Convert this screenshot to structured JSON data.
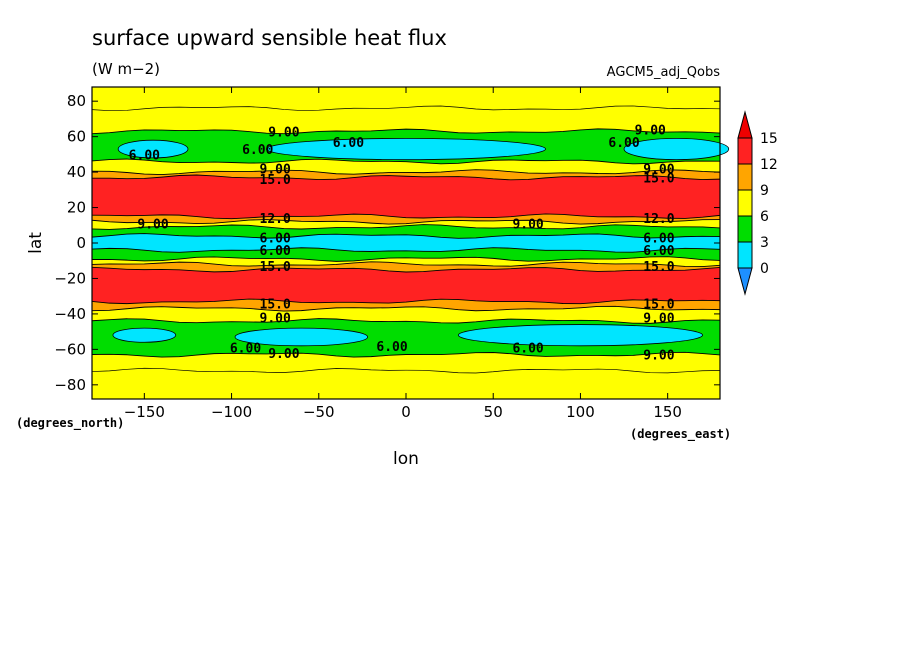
{
  "chart_data": {
    "type": "heatmap",
    "title": "surface upward sensible heat flux",
    "units": "(W m−2)",
    "dataset": "AGCM5_adj_Qobs",
    "xlabel": "lon",
    "ylabel": "lat",
    "x_units": "(degrees_east)",
    "y_units": "(degrees_north)",
    "xlim": [
      -180,
      180
    ],
    "ylim": [
      -88,
      88
    ],
    "x_ticks": [
      -150,
      -100,
      -50,
      0,
      50,
      100,
      150
    ],
    "y_ticks": [
      -80,
      -60,
      -40,
      -20,
      0,
      20,
      40,
      60,
      80
    ],
    "colorbar": {
      "levels": [
        0,
        3,
        6,
        9,
        12,
        15
      ],
      "tick_labels": [
        "0",
        "3",
        "6",
        "9",
        "12",
        "15"
      ],
      "colors": [
        "#1e90ff",
        "#00e5ff",
        "#00dd00",
        "#ffff00",
        "#ffa500",
        "#ff2222",
        "#ee0000"
      ]
    },
    "contour_labels": [
      "9.00",
      "6.00",
      "12.0",
      "15.0"
    ],
    "bands": [
      {
        "lat_from": 88,
        "lat_to": 63,
        "color": "#ffff00"
      },
      {
        "lat_from": 63,
        "lat_to": 46,
        "color": "#00dd00"
      },
      {
        "lat_from": 46,
        "lat_to": 40,
        "color": "#ffff00"
      },
      {
        "lat_from": 40,
        "lat_to": 37,
        "color": "#ffa500"
      },
      {
        "lat_from": 37,
        "lat_to": 15,
        "color": "#ff2222"
      },
      {
        "lat_from": 15,
        "lat_to": 12,
        "color": "#ffa500"
      },
      {
        "lat_from": 12,
        "lat_to": 9,
        "color": "#ffff00"
      },
      {
        "lat_from": 9,
        "lat_to": 4,
        "color": "#00dd00"
      },
      {
        "lat_from": 4,
        "lat_to": -4,
        "color": "#00e5ff"
      },
      {
        "lat_from": -4,
        "lat_to": -9,
        "color": "#00dd00"
      },
      {
        "lat_from": -9,
        "lat_to": -12,
        "color": "#ffff00"
      },
      {
        "lat_from": -12,
        "lat_to": -15,
        "color": "#ffa500"
      },
      {
        "lat_from": -15,
        "lat_to": -33,
        "color": "#ff2222"
      },
      {
        "lat_from": -33,
        "lat_to": -37,
        "color": "#ffa500"
      },
      {
        "lat_from": -37,
        "lat_to": -44,
        "color": "#ffff00"
      },
      {
        "lat_from": -44,
        "lat_to": -63,
        "color": "#00dd00"
      },
      {
        "lat_from": -63,
        "lat_to": -88,
        "color": "#ffff00"
      }
    ],
    "cyan_patches": [
      {
        "lon": -145,
        "lat": 53,
        "rlon": 20,
        "rlat": 5
      },
      {
        "lon": 0,
        "lat": 53,
        "rlon": 80,
        "rlat": 6
      },
      {
        "lon": 155,
        "lat": 53,
        "rlon": 30,
        "rlat": 6
      },
      {
        "lon": -150,
        "lat": -52,
        "rlon": 18,
        "rlat": 4
      },
      {
        "lon": -60,
        "lat": -53,
        "rlon": 38,
        "rlat": 5
      },
      {
        "lon": 100,
        "lat": -52,
        "rlon": 70,
        "rlat": 6
      }
    ]
  }
}
